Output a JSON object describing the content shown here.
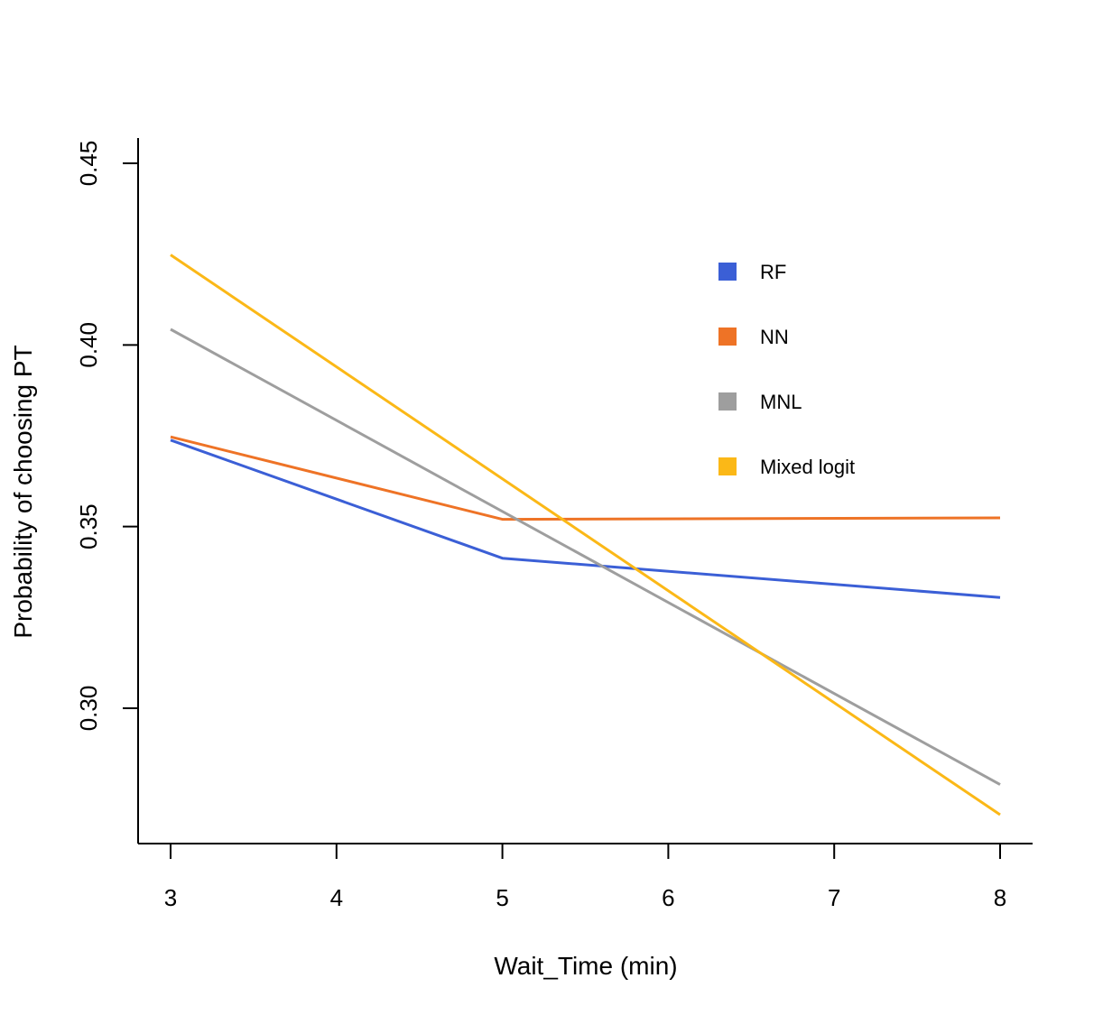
{
  "chart_data": {
    "type": "line",
    "title": "",
    "xlabel": "Wait_Time (min)",
    "ylabel": "Probability of choosing PT",
    "x": [
      3,
      5,
      8
    ],
    "xticks": [
      3,
      4,
      5,
      6,
      7,
      8
    ],
    "xtick_labels": [
      "3",
      "4",
      "5",
      "6",
      "7",
      "8"
    ],
    "yticks": [
      0.3,
      0.35,
      0.4,
      0.45
    ],
    "ytick_labels": [
      "0.30",
      "0.35",
      "0.40",
      "0.45"
    ],
    "xlim": [
      2.8,
      8.2
    ],
    "ylim": [
      0.2625,
      0.457
    ],
    "grid": false,
    "legend_position": "top-right",
    "series": [
      {
        "name": "RF",
        "color": "#3b5fd6",
        "x": [
          3,
          5,
          8
        ],
        "values": [
          0.3738,
          0.3413,
          0.3305
        ]
      },
      {
        "name": "NN",
        "color": "#ee7326",
        "x": [
          3,
          5,
          8
        ],
        "values": [
          0.3747,
          0.352,
          0.3524
        ]
      },
      {
        "name": "MNL",
        "color": "#9e9e9e",
        "x": [
          3,
          8
        ],
        "values": [
          0.4043,
          0.279
        ]
      },
      {
        "name": "Mixed logit",
        "color": "#fbb817",
        "x": [
          3,
          8
        ],
        "values": [
          0.4248,
          0.2707
        ]
      }
    ]
  }
}
